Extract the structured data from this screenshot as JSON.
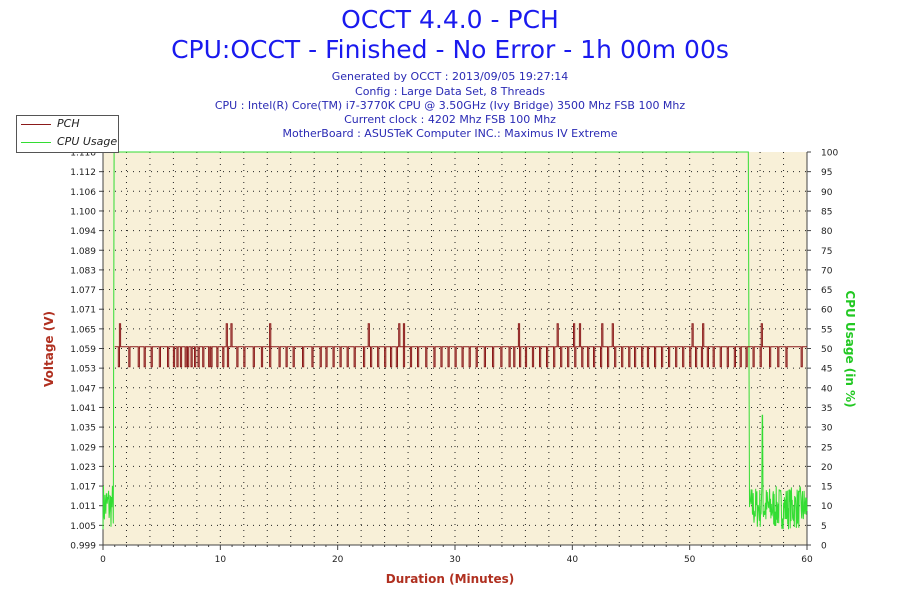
{
  "header": {
    "title": "OCCT 4.4.0 - PCH",
    "subtitle": "CPU:OCCT - Finished - No Error - 1h 00m 00s",
    "info_lines": [
      "Generated by OCCT : 2013/09/05 19:27:14",
      "Config : Large Data Set, 8 Threads",
      "CPU : Intel(R) Core(TM) i7-3770K CPU @ 3.50GHz (Ivy Bridge) 3500 Mhz FSB 100 Mhz",
      "Current clock : 4202 Mhz FSB 100 Mhz",
      "MotherBoard : ASUSTeK Computer INC.: Maximus IV Extreme"
    ]
  },
  "legend": {
    "items": [
      {
        "label": "PCH",
        "color": "#8b1a1a"
      },
      {
        "label": "CPU Usage",
        "color": "#33dd33"
      }
    ]
  },
  "chart_data": {
    "type": "line",
    "xlabel": "Duration (Minutes)",
    "ylabel": "Voltage (V)",
    "y2label": "CPU Usage (in %)",
    "xlim": [
      0,
      60
    ],
    "ylim": [
      0.999,
      1.118
    ],
    "y2lim": [
      0,
      100
    ],
    "x_ticks": [
      "0",
      "10",
      "20",
      "30",
      "40",
      "50",
      "60"
    ],
    "y_ticks": [
      "0.999",
      "1.005",
      "1.011",
      "1.017",
      "1.023",
      "1.029",
      "1.035",
      "1.041",
      "1.047",
      "1.053",
      "1.059",
      "1.065",
      "1.071",
      "1.077",
      "1.083",
      "1.089",
      "1.094",
      "1.100",
      "1.106",
      "1.112",
      "1.118"
    ],
    "y2_ticks": [
      "0",
      "5",
      "10",
      "15",
      "20",
      "25",
      "30",
      "35",
      "40",
      "45",
      "50",
      "55",
      "60",
      "65",
      "70",
      "75",
      "80",
      "85",
      "90",
      "95",
      "100"
    ],
    "grid": true,
    "plot_bg": "#f8f0d8",
    "series": [
      {
        "name": "PCH",
        "color": "#8b1a1a",
        "axis": "left",
        "baseline": 1.059,
        "low_value": 1.053,
        "spike_value": 1.066,
        "start": 1.0,
        "end": 60.0,
        "dips": [
          1.3,
          2.2,
          3.0,
          3.5,
          4.1,
          4.8,
          5.5,
          6.0,
          6.3,
          6.6,
          7.0,
          7.2,
          7.5,
          7.8,
          8.1,
          8.5,
          9.0,
          9.2,
          9.7,
          10.2,
          10.6,
          11.4,
          12.0,
          12.8,
          13.5,
          14.2,
          15.0,
          15.6,
          16.2,
          17.0,
          17.8,
          18.5,
          19.0,
          19.6,
          20.2,
          20.8,
          21.4,
          22.2,
          22.8,
          23.4,
          24.0,
          24.5,
          25.0,
          25.6,
          26.2,
          26.8,
          27.5,
          28.2,
          28.8,
          29.4,
          30.0,
          30.6,
          31.2,
          31.8,
          32.5,
          33.2,
          33.9,
          34.6,
          35.0,
          35.5,
          36.0,
          36.6,
          37.2,
          37.8,
          38.4,
          39.0,
          39.6,
          40.2,
          40.8,
          41.3,
          41.8,
          42.4,
          43.0,
          43.6,
          44.2,
          44.8,
          45.3,
          45.9,
          46.4,
          47.0,
          47.6,
          48.2,
          48.8,
          49.4,
          50.0,
          50.5,
          51.0,
          51.5,
          52.0,
          52.6,
          53.2,
          53.8,
          54.3,
          54.8,
          55.4,
          56.0,
          56.8,
          57.5,
          58.2,
          59.5
        ],
        "spikes": [
          1.4,
          10.5,
          10.9,
          14.2,
          22.6,
          25.2,
          25.6,
          35.4,
          38.7,
          40.1,
          40.6,
          42.5,
          43.4,
          50.2,
          51.1,
          56.1
        ]
      },
      {
        "name": "CPU Usage",
        "color": "#33dd33",
        "axis": "right",
        "points": [
          [
            0,
            8
          ],
          [
            0.2,
            16
          ],
          [
            0.4,
            6
          ],
          [
            0.6,
            14
          ],
          [
            0.8,
            12
          ],
          [
            0.95,
            100
          ],
          [
            55.0,
            100
          ],
          [
            55.1,
            10
          ],
          [
            60,
            10
          ]
        ],
        "noise_ranges": [
          [
            0,
            0.9,
            4,
            16
          ],
          [
            55.1,
            60,
            4,
            15
          ]
        ],
        "peak": [
          56.2,
          33
        ]
      }
    ]
  }
}
